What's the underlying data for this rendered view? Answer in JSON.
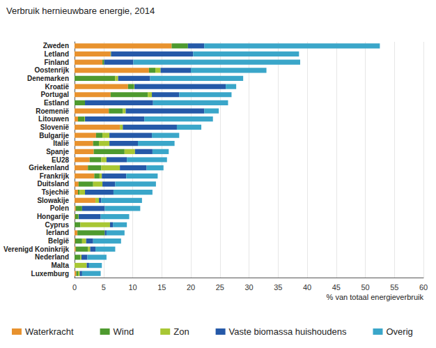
{
  "chart_data": {
    "type": "bar",
    "title": "Verbruik hernieuwbare energie, 2014",
    "x_label": "% van totaal energieverbruik",
    "orientation": "horizontal",
    "stacked": true,
    "grid": true,
    "legend": "bottom",
    "categories": [
      "Zweden",
      "Letland",
      "Finland",
      "Oostenrijk",
      "Denemarken",
      "Kroatië",
      "Portugal",
      "Estland",
      "Roemenië",
      "Litouwen",
      "Slovenië",
      "Bulgarije",
      "Italië",
      "Spanje",
      "EU28",
      "Griekenland",
      "Frankrijk",
      "Duitsland",
      "Tsjechië",
      "Slowakije",
      "Polen",
      "Hongarije",
      "Cyprus",
      "Ierland",
      "België",
      "Verenigd Koninkrijk",
      "Nederland",
      "Malta",
      "Luxemburg"
    ],
    "xlim": [
      0,
      60
    ],
    "xticks": [
      0,
      5,
      10,
      15,
      20,
      25,
      30,
      35,
      40,
      45,
      50,
      55,
      60
    ],
    "series": [
      {
        "name": "Waterkracht",
        "color": "#e8922e",
        "values": [
          16.7,
          6.2,
          4.8,
          12.8,
          0,
          9.2,
          6.2,
          0,
          5.9,
          0.6,
          7.8,
          3.7,
          3.2,
          3.3,
          2.6,
          2.3,
          3.4,
          0.7,
          0.6,
          3.6,
          0.2,
          0.1,
          0,
          0.5,
          0.1,
          0.2,
          0,
          0,
          0.3
        ]
      },
      {
        "name": "Wind",
        "color": "#4e9a2f",
        "values": [
          2.8,
          0.1,
          0.3,
          1.1,
          7.0,
          1.0,
          6.4,
          1.8,
          2.4,
          1.1,
          0,
          1.1,
          1.0,
          5.3,
          2.0,
          2.3,
          0.9,
          2.5,
          0.3,
          0,
          1.1,
          0.5,
          1.0,
          4.7,
          1.2,
          2.1,
          1.0,
          0,
          0.3
        ]
      },
      {
        "name": "Zon",
        "color": "#a8c734",
        "values": [
          0,
          0,
          0,
          0.9,
          0.5,
          0.1,
          0.7,
          0,
          0.5,
          0.1,
          0.5,
          1.2,
          1.8,
          1.8,
          0.9,
          3.2,
          0.4,
          1.6,
          0.9,
          0.6,
          0,
          0.1,
          5.1,
          0,
          0.7,
          0.4,
          0.2,
          2.1,
          0.3
        ]
      },
      {
        "name": "Vaste biomassa huishoudens",
        "color": "#2559a8",
        "values": [
          2.8,
          14.1,
          5.0,
          5.2,
          5.5,
          15.7,
          4.7,
          11.7,
          13.5,
          10.2,
          9.3,
          7.3,
          4.9,
          3.0,
          3.5,
          4.6,
          4.2,
          2.2,
          4.9,
          0.4,
          3.9,
          3.8,
          0.5,
          0.3,
          1.2,
          0.9,
          1.0,
          0.4,
          0.4
        ]
      },
      {
        "name": "Overig",
        "color": "#3aa6c9",
        "values": [
          30.2,
          18.2,
          28.7,
          13.0,
          16.0,
          1.8,
          9.0,
          12.9,
          2.5,
          11.8,
          4.2,
          4.7,
          6.3,
          2.8,
          6.9,
          2.9,
          5.4,
          7.0,
          6.7,
          7.0,
          6.1,
          4.9,
          2.4,
          3.1,
          4.8,
          3.4,
          3.3,
          2.2,
          3.2
        ]
      }
    ]
  }
}
